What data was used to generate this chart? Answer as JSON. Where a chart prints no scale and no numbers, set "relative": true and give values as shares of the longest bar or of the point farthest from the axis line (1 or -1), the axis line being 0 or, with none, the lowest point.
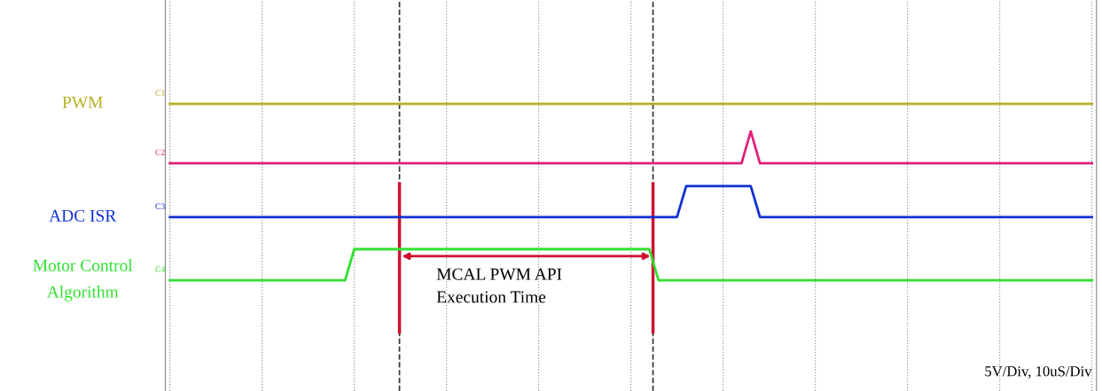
{
  "chart_data": {
    "type": "line",
    "relative": true,
    "categories": [
      null,
      null,
      null,
      null,
      null,
      null,
      null,
      null,
      null,
      null,
      null,
      null,
      null,
      null,
      null,
      null,
      null,
      null,
      null,
      null,
      null,
      null,
      null,
      null,
      null,
      null,
      null,
      null,
      null,
      null,
      null,
      null,
      null,
      null,
      null,
      null,
      null,
      null,
      null,
      null,
      null,
      null,
      null,
      null,
      null,
      null,
      null,
      null,
      null,
      null,
      null,
      null,
      null,
      null,
      null,
      null,
      null,
      null,
      null,
      null,
      null,
      null,
      null,
      null,
      null,
      null,
      null,
      null,
      null,
      null,
      null,
      null,
      null,
      null,
      null,
      null,
      null,
      null,
      null,
      null,
      null,
      null,
      null,
      null,
      null,
      null,
      null,
      null,
      null,
      null,
      null,
      null,
      null,
      null,
      null,
      null,
      null,
      null,
      null,
      null,
      null
    ],
    "grid": "x",
    "marker": "none",
    "line_style": "solid",
    "series": [
      {
        "name": "PWM",
        "color": "#b5b022",
        "values": [
          1,
          1,
          1,
          1,
          1,
          1,
          1,
          1,
          1,
          1,
          1,
          1,
          1,
          1,
          1,
          1,
          1,
          1,
          1,
          1,
          1,
          1,
          1,
          1,
          1,
          1,
          1,
          1,
          1,
          1,
          1,
          1,
          1,
          1,
          1,
          1,
          1,
          1,
          1,
          1,
          1,
          1,
          1,
          1,
          1,
          1,
          1,
          1,
          1,
          1,
          1,
          1,
          1,
          1,
          1,
          1,
          1,
          1,
          1,
          1,
          1,
          1,
          1,
          1,
          1,
          1,
          1,
          1,
          1,
          1,
          1,
          1,
          1,
          1,
          1,
          1,
          1,
          1,
          1,
          1,
          1,
          1,
          1,
          1,
          1,
          1,
          1,
          1,
          1,
          1,
          1,
          1,
          1,
          1,
          1,
          1,
          1,
          1,
          1,
          1,
          1
        ]
      },
      {
        "color": "#e0207a",
        "values": [
          0.663,
          0.663,
          0.663,
          0.663,
          0.663,
          0.663,
          0.663,
          0.663,
          0.663,
          0.663,
          0.663,
          0.663,
          0.663,
          0.663,
          0.663,
          0.663,
          0.663,
          0.663,
          0.663,
          0.663,
          0.663,
          0.663,
          0.663,
          0.663,
          0.663,
          0.663,
          0.663,
          0.663,
          0.663,
          0.663,
          0.663,
          0.663,
          0.663,
          0.663,
          0.663,
          0.663,
          0.663,
          0.663,
          0.663,
          0.663,
          0.663,
          0.663,
          0.663,
          0.663,
          0.663,
          0.663,
          0.663,
          0.663,
          0.663,
          0.663,
          0.663,
          0.663,
          0.663,
          0.663,
          0.663,
          0.663,
          0.663,
          0.663,
          0.663,
          0.663,
          0.663,
          0.663,
          0.663,
          0.844,
          0.663,
          0.663,
          0.663,
          0.663,
          0.663,
          0.663,
          0.663,
          0.663,
          0.663,
          0.663,
          0.663,
          0.663,
          0.663,
          0.663,
          0.663,
          0.663,
          0.663,
          0.663,
          0.663,
          0.663,
          0.663,
          0.663,
          0.663,
          0.663,
          0.663,
          0.663,
          0.663,
          0.663,
          0.663,
          0.663,
          0.663,
          0.663,
          0.663,
          0.663,
          0.663,
          0.663,
          0.663
        ]
      },
      {
        "name": "ADC ISR",
        "color": "#1030d0",
        "values": [
          0.357,
          0.357,
          0.357,
          0.357,
          0.357,
          0.357,
          0.357,
          0.357,
          0.357,
          0.357,
          0.357,
          0.357,
          0.357,
          0.357,
          0.357,
          0.357,
          0.357,
          0.357,
          0.357,
          0.357,
          0.357,
          0.357,
          0.357,
          0.357,
          0.357,
          0.357,
          0.357,
          0.357,
          0.357,
          0.357,
          0.357,
          0.357,
          0.357,
          0.357,
          0.357,
          0.357,
          0.357,
          0.357,
          0.357,
          0.357,
          0.357,
          0.357,
          0.357,
          0.357,
          0.357,
          0.357,
          0.357,
          0.357,
          0.357,
          0.357,
          0.357,
          0.357,
          0.357,
          0.357,
          0.357,
          0.357,
          0.533,
          0.533,
          0.533,
          0.533,
          0.533,
          0.533,
          0.533,
          0.533,
          0.357,
          0.357,
          0.357,
          0.357,
          0.357,
          0.357,
          0.357,
          0.357,
          0.357,
          0.357,
          0.357,
          0.357,
          0.357,
          0.357,
          0.357,
          0.357,
          0.357,
          0.357,
          0.357,
          0.357,
          0.357,
          0.357,
          0.357,
          0.357,
          0.357,
          0.357,
          0.357,
          0.357,
          0.357,
          0.357,
          0.357,
          0.357,
          0.357,
          0.357,
          0.357,
          0.357,
          0.357
        ]
      },
      {
        "name": "Motor Control\nAlgorithm",
        "color": "#30e030",
        "values": [
          0,
          0,
          0,
          0,
          0,
          0,
          0,
          0,
          0,
          0,
          0,
          0,
          0,
          0,
          0,
          0,
          0,
          0,
          0,
          0,
          0.176,
          0.176,
          0.176,
          0.176,
          0.176,
          0.176,
          0.176,
          0.176,
          0.176,
          0.176,
          0.176,
          0.176,
          0.176,
          0.176,
          0.176,
          0.176,
          0.176,
          0.176,
          0.176,
          0.176,
          0.176,
          0.176,
          0.176,
          0.176,
          0.176,
          0.176,
          0.176,
          0.176,
          0.176,
          0.176,
          0.176,
          0.176,
          0.176,
          0,
          0,
          0,
          0,
          0,
          0,
          0,
          0,
          0,
          0,
          0,
          0,
          0,
          0,
          0,
          0,
          0,
          0,
          0,
          0,
          0,
          0,
          0,
          0,
          0,
          0,
          0,
          0,
          0,
          0,
          0,
          0,
          0,
          0,
          0,
          0,
          0,
          0,
          0,
          0,
          0,
          0,
          0,
          0,
          0,
          0,
          0,
          0
        ]
      }
    ],
    "annotations": [
      "C1",
      "C2",
      "C3",
      "C4",
      "MCAL PWM API\nExecution Time",
      "5V/Div, 10uS/Div"
    ]
  }
}
